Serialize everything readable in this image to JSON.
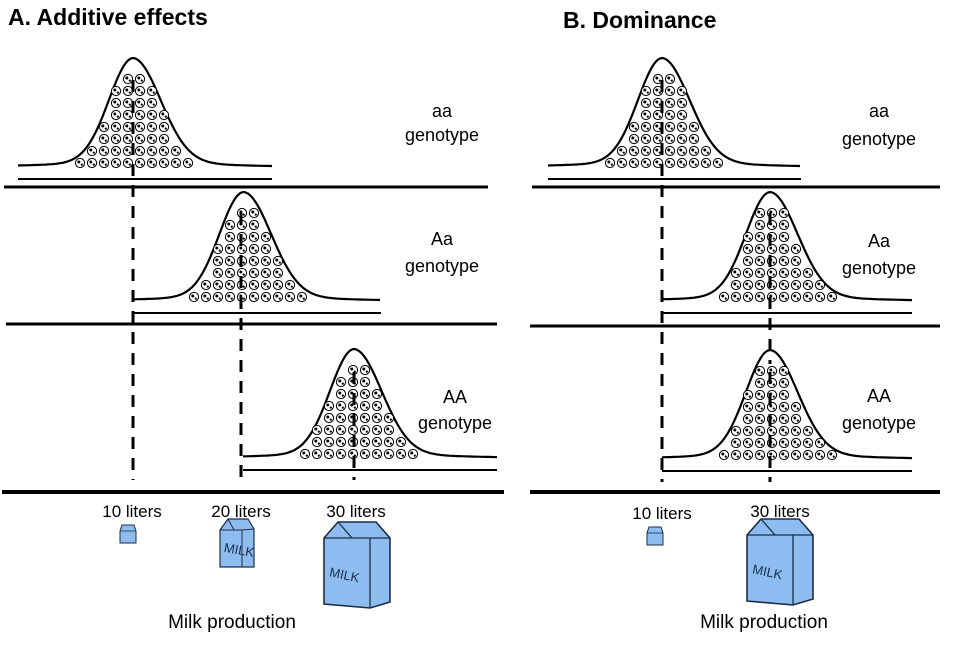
{
  "panels": [
    {
      "title": "A. Additive effects",
      "rows": [
        {
          "genotype_line1": "aa",
          "genotype_line2": "genotype",
          "peak_liters": 10
        },
        {
          "genotype_line1": "Aa",
          "genotype_line2": "genotype",
          "peak_liters": 20
        },
        {
          "genotype_line1": "AA",
          "genotype_line2": "genotype",
          "peak_liters": 30
        }
      ],
      "axis_labels": [
        {
          "label": "10 liters",
          "liters": 10
        },
        {
          "label": "20 liters",
          "liters": 20
        },
        {
          "label": "30 liters",
          "liters": 30
        }
      ],
      "carton_text": "MILK",
      "axis_title": "Milk production"
    },
    {
      "title": "B. Dominance",
      "rows": [
        {
          "genotype_line1": "aa",
          "genotype_line2": "genotype",
          "peak_liters": 10
        },
        {
          "genotype_line1": "Aa",
          "genotype_line2": "genotype",
          "peak_liters": 30
        },
        {
          "genotype_line1": "AA",
          "genotype_line2": "genotype",
          "peak_liters": 30
        }
      ],
      "axis_labels": [
        {
          "label": "10 liters",
          "liters": 10
        },
        {
          "label": "30 liters",
          "liters": 30
        }
      ],
      "carton_text": "MILK",
      "axis_title": "Milk production"
    }
  ],
  "colors": {
    "carton_fill": "#8cbcf0",
    "carton_stroke": "#1e2e44",
    "line": "#000000"
  }
}
